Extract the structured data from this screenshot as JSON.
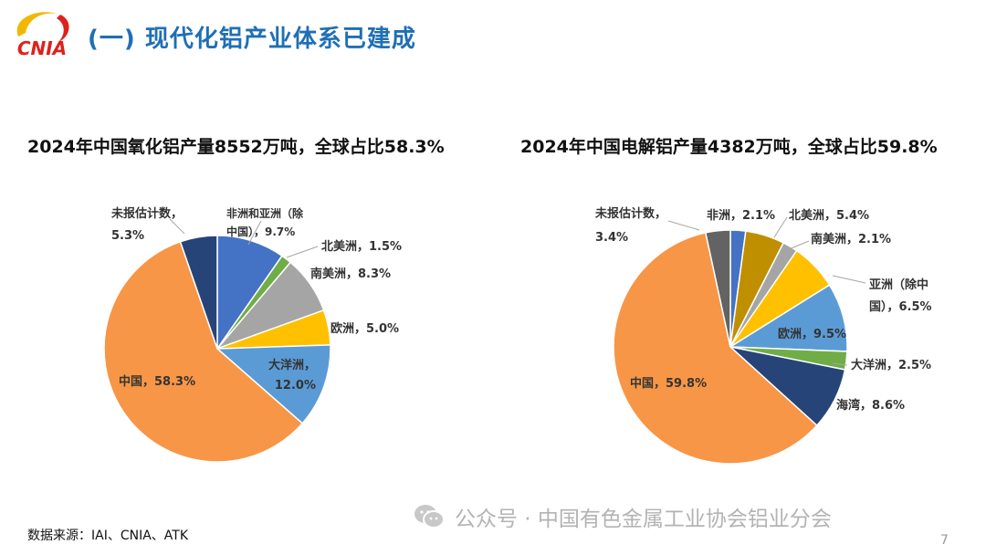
{
  "header": {
    "logo_text": "CNIA",
    "title": "(一) 现代化铝产业体系已建成"
  },
  "colors": {
    "title_blue": "#1f6fb5",
    "logo_red": "#e0201b",
    "logo_gold": "#f2b705"
  },
  "chart_data": [
    {
      "type": "pie",
      "title": "2024年中国氧化铝产量8552万吨，全球占比58.3%",
      "start_angle_deg": 0,
      "direction": "clockwise",
      "slices": [
        {
          "name": "非洲和亚洲（除中国）",
          "value": 9.7,
          "color": "#4472c4",
          "label_lines": [
            "非洲和亚洲（除",
            "中国），9.7%"
          ]
        },
        {
          "name": "北美洲",
          "value": 1.5,
          "color": "#70ad47",
          "label_lines": [
            "北美洲，1.5%"
          ]
        },
        {
          "name": "南美洲",
          "value": 8.3,
          "color": "#a5a5a5",
          "label_lines": [
            "南美洲，8.3%"
          ]
        },
        {
          "name": "欧洲",
          "value": 5.0,
          "color": "#ffc000",
          "label_lines": [
            "欧洲，5.0%"
          ]
        },
        {
          "name": "大洋洲",
          "value": 12.0,
          "color": "#5b9bd5",
          "label_lines": [
            "大洋洲，",
            "12.0%"
          ]
        },
        {
          "name": "中国",
          "value": 58.3,
          "color": "#f79646",
          "label_lines": [
            "中国，58.3%"
          ]
        },
        {
          "name": "未报估计数",
          "value": 5.3,
          "color": "#264478",
          "label_lines": [
            "未报估计数，",
            "5.3%"
          ]
        }
      ]
    },
    {
      "type": "pie",
      "title": "2024年中国电解铝产量4382万吨，全球占比59.8%",
      "start_angle_deg": 0,
      "direction": "clockwise",
      "slices": [
        {
          "name": "非洲",
          "value": 2.1,
          "color": "#4472c4",
          "label_lines": [
            "非洲，2.1%"
          ]
        },
        {
          "name": "北美洲",
          "value": 5.4,
          "color": "#bf8f00",
          "label_lines": [
            "北美洲，5.4%"
          ]
        },
        {
          "name": "南美洲",
          "value": 2.1,
          "color": "#a5a5a5",
          "label_lines": [
            "南美洲，2.1%"
          ]
        },
        {
          "name": "亚洲（除中国）",
          "value": 6.5,
          "color": "#ffc000",
          "label_lines": [
            "亚洲（除中",
            "国），6.5%"
          ]
        },
        {
          "name": "欧洲",
          "value": 9.5,
          "color": "#5b9bd5",
          "label_lines": [
            "欧洲，9.5%"
          ]
        },
        {
          "name": "大洋洲",
          "value": 2.5,
          "color": "#70ad47",
          "label_lines": [
            "大洋洲，2.5%"
          ]
        },
        {
          "name": "海湾",
          "value": 8.6,
          "color": "#264478",
          "label_lines": [
            "海湾，8.6%"
          ]
        },
        {
          "name": "中国",
          "value": 59.8,
          "color": "#f79646",
          "label_lines": [
            "中国，59.8%"
          ]
        },
        {
          "name": "未报估计数",
          "value": 3.4,
          "color": "#636363",
          "label_lines": [
            "未报估计数，",
            "3.4%"
          ]
        }
      ]
    }
  ],
  "footer": {
    "source": "数据来源：IAI、CNIA、ATK",
    "watermark": "公众号 · 中国有色金属工业协会铝业分会",
    "page_number": "7"
  }
}
